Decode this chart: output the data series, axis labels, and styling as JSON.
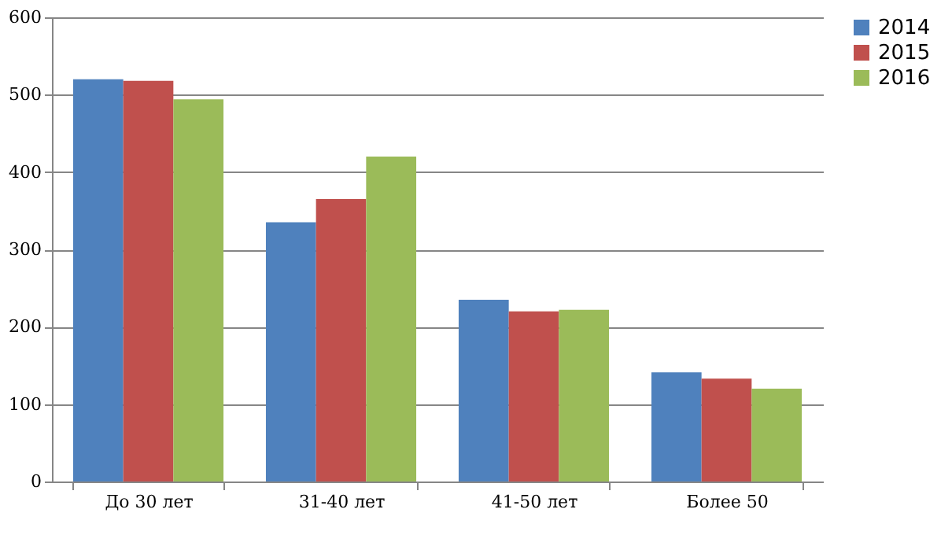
{
  "chart_data": {
    "type": "bar",
    "categories": [
      "До 30 лет",
      "31-40 лет",
      "41-50 лет",
      "Более 50"
    ],
    "series": [
      {
        "name": "2014",
        "color": "#4f81bd",
        "values": [
          520,
          335,
          235,
          141
        ]
      },
      {
        "name": "2015",
        "color": "#c0504d",
        "values": [
          518,
          365,
          220,
          133
        ]
      },
      {
        "name": "2016",
        "color": "#9bbb59",
        "values": [
          494,
          420,
          222,
          120
        ]
      }
    ],
    "ylim": [
      0,
      600
    ],
    "yticks": [
      0,
      100,
      200,
      300,
      400,
      500,
      600
    ],
    "grid": "y",
    "legend": "right"
  }
}
